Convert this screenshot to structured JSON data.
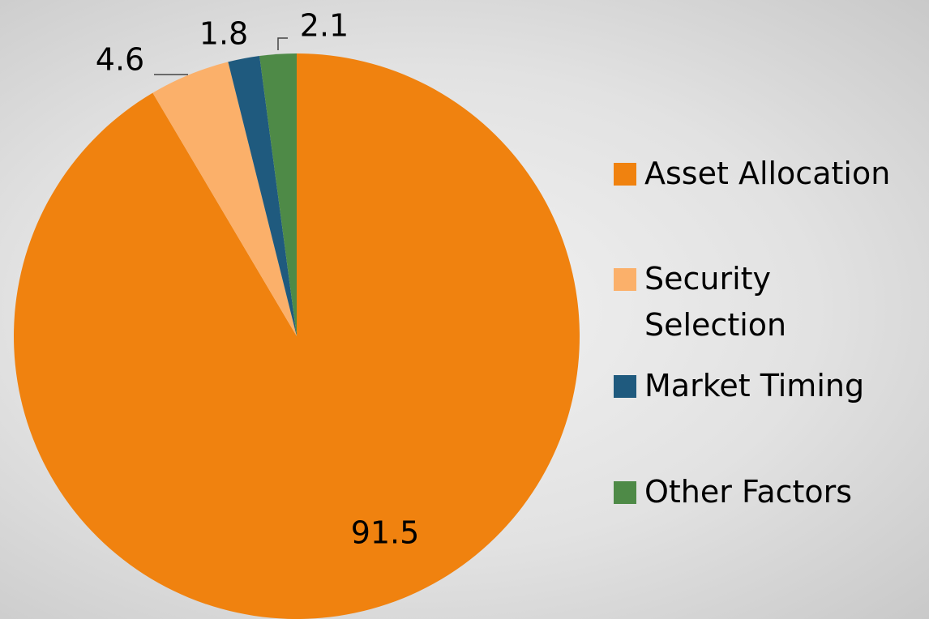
{
  "chart_data": {
    "type": "pie",
    "categories": [
      "Asset Allocation",
      "Security Selection",
      "Market Timing",
      "Other Factors"
    ],
    "values": [
      91.5,
      4.6,
      1.8,
      2.1
    ],
    "colors": [
      "#f0820f",
      "#fbb06a",
      "#1f5a7e",
      "#4e8a47"
    ],
    "legend": "right"
  }
}
